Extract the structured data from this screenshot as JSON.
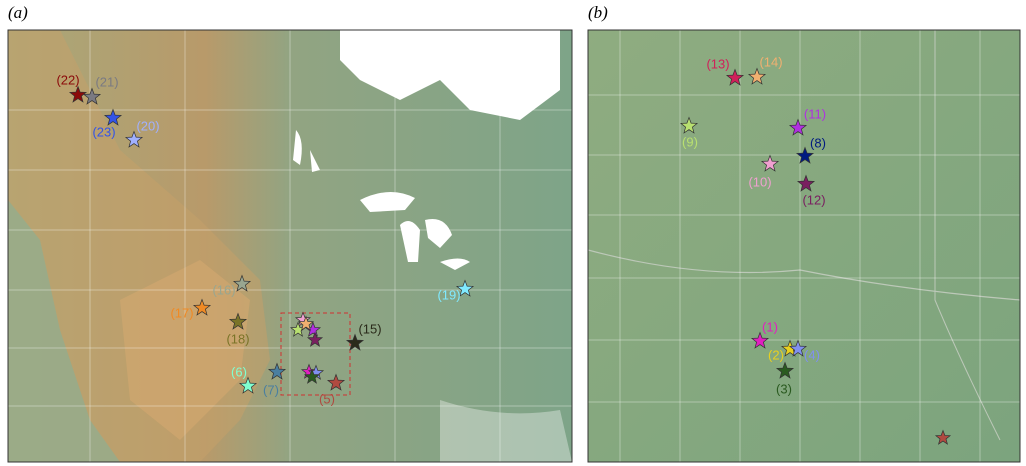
{
  "panels": [
    {
      "label": "(a)",
      "markers": [
        {
          "label": "(22)",
          "color": "#8b0a0a"
        },
        {
          "label": "(21)",
          "color": "#7a7a82"
        },
        {
          "label": "(23)",
          "color": "#3354e8"
        },
        {
          "label": "(20)",
          "color": "#a0b0ff"
        },
        {
          "label": "(16)",
          "color": "#98a690"
        },
        {
          "label": "(17)",
          "color": "#f08a24"
        },
        {
          "label": "(18)",
          "color": "#7a7428"
        },
        {
          "label": "(19)",
          "color": "#80eaff"
        },
        {
          "label": "(15)",
          "color": "#2a2a1a"
        },
        {
          "label": "(6)",
          "color": "#80ffd0"
        },
        {
          "label": "(7)",
          "color": "#4a7fa0"
        },
        {
          "label": "(5)",
          "color": "#b04a40"
        }
      ]
    },
    {
      "label": "(b)",
      "markers": [
        {
          "label": "(13)",
          "color": "#d0205a"
        },
        {
          "label": "(14)",
          "color": "#f0b070"
        },
        {
          "label": "(9)",
          "color": "#b8e070"
        },
        {
          "label": "(11)",
          "color": "#b030e0"
        },
        {
          "label": "(8)",
          "color": "#001a80"
        },
        {
          "label": "(10)",
          "color": "#f0a0d0"
        },
        {
          "label": "(12)",
          "color": "#7a2060"
        },
        {
          "label": "(1)",
          "color": "#e020c0"
        },
        {
          "label": "(2)",
          "color": "#e8d020"
        },
        {
          "label": "(4)",
          "color": "#8090f0"
        },
        {
          "label": "(3)",
          "color": "#2a5a20"
        }
      ]
    }
  ]
}
